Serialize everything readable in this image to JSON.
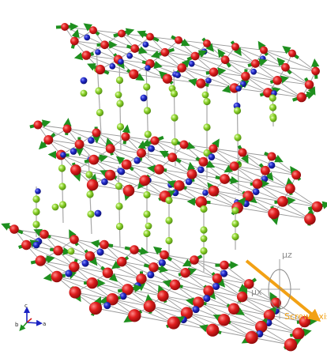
{
  "legend": {
    "mu_z": "μz",
    "mu_x": "μx",
    "screw_axis": "Screw axis"
  },
  "axes_indicator": {
    "c": "c",
    "b": "b",
    "a": "a"
  },
  "colors": {
    "metal_atom": "#d71a1a",
    "blue_atom": "#1a22c2",
    "green_atom": "#8ed42c",
    "spin_arrow": "#1e8f1e",
    "screw_arrow": "#f2a114"
  }
}
